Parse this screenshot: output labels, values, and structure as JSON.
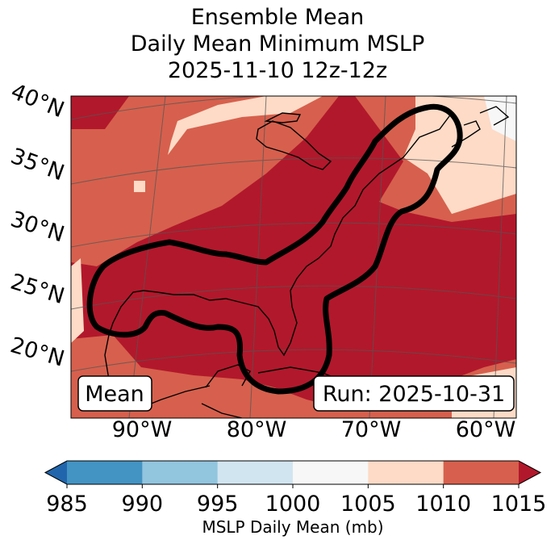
{
  "title": {
    "line1": "Ensemble Mean",
    "line2": "Daily Mean Minimum MSLP",
    "line3": "2025-11-10 12z-12z"
  },
  "map": {
    "mean_label": "Mean",
    "run_label": "Run: 2025-10-31"
  },
  "chart_data": {
    "type": "heatmap",
    "title": "Ensemble Mean Daily Mean Minimum MSLP 2025-11-10 12z-12z",
    "field": "Daily mean minimum mean sea level pressure (ensemble mean)",
    "units": "mb",
    "region": {
      "lat_range": [
        15,
        42
      ],
      "lon_range": [
        -96,
        -58
      ]
    },
    "lat_ticks": [
      "40°N",
      "35°N",
      "30°N",
      "25°N",
      "20°N"
    ],
    "lon_ticks": [
      "90°W",
      "80°W",
      "70°W",
      "60°W"
    ],
    "colorbar": {
      "label": "MSLP Daily Mean (mb)",
      "ticks": [
        "985",
        "990",
        "995",
        "1000",
        "1005",
        "1010",
        "1015"
      ],
      "bins": [
        {
          "range": [
            985,
            990
          ],
          "color": "#4393c3"
        },
        {
          "range": [
            990,
            995
          ],
          "color": "#92c5de"
        },
        {
          "range": [
            995,
            1000
          ],
          "color": "#d1e5f0"
        },
        {
          "range": [
            1000,
            1005
          ],
          "color": "#f7f7f7"
        },
        {
          "range": [
            1005,
            1010
          ],
          "color": "#fddbc7"
        },
        {
          "range": [
            1010,
            1015
          ],
          "color": "#d6604d"
        },
        {
          "range": [
            1015,
            9999
          ],
          "color": "#b2182b"
        }
      ],
      "extend_low_color": "#2166ac",
      "extend_high_color": "#b2182b"
    },
    "observed_pressure_categories": [
      "1000-1005",
      "1005-1010",
      "1010-1015",
      ">1015"
    ],
    "contour_outline": "Thick black outline enclosing the >1015 mb ridge over the Gulf of Mexico, Florida and the US East Coast"
  },
  "colors": {
    "land_high": "#b2182b",
    "mid": "#d6604d",
    "light": "#fddbc7",
    "white": "#f7f7f7"
  }
}
